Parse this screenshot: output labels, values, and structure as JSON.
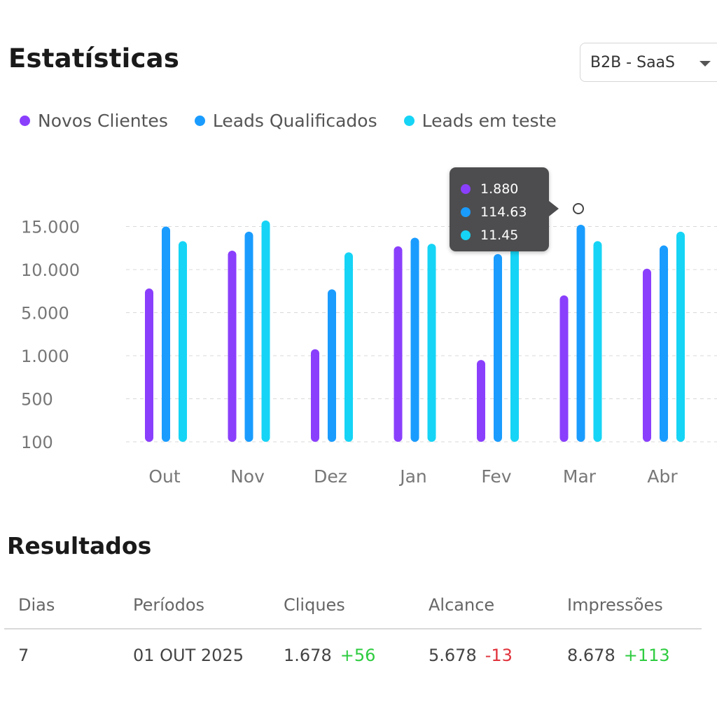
{
  "header": {
    "title": "Estatísticas"
  },
  "filter": {
    "selected": "B2B - SaaS"
  },
  "chart_data": {
    "type": "bar",
    "categories": [
      "Out",
      "Nov",
      "Dez",
      "Jan",
      "Fev",
      "Mar",
      "Abr"
    ],
    "y_tick_labels": [
      "100",
      "500",
      "1.000",
      "5.000",
      "10.000",
      "15.000"
    ],
    "grid": true,
    "legend_position": "top-left",
    "series": [
      {
        "name": "Novos Clientes",
        "color": "#8a3ffc",
        "values": [
          7800,
          12200,
          1600,
          12700,
          950,
          7000,
          10100
        ]
      },
      {
        "name": "Leads Qualificados",
        "color": "#1a9cff",
        "values": [
          15000,
          14400,
          7700,
          13700,
          11800,
          15200,
          12800
        ]
      },
      {
        "name": "Leads em teste",
        "color": "#16d4f5",
        "values": [
          13300,
          15700,
          12000,
          13000,
          14100,
          13300,
          14400
        ]
      }
    ]
  },
  "tooltip": {
    "items": [
      {
        "color": "#8a3ffc",
        "value": "1.880"
      },
      {
        "color": "#1a9cff",
        "value": "114.63"
      },
      {
        "color": "#16d4f5",
        "value": "11.45"
      }
    ]
  },
  "results": {
    "title": "Resultados",
    "columns": [
      "Dias",
      "Períodos",
      "Cliques",
      "Alcance",
      "Impressões"
    ],
    "row": {
      "dias": "7",
      "periodo": "01 OUT 2025",
      "cliques": "1.678",
      "cliques_delta": "+56",
      "alcance": "5.678",
      "alcance_delta": "-13",
      "impressoes": "8.678",
      "impressoes_delta": "+113"
    },
    "positive_color": "#2ecc40",
    "negative_color": "#e0323b"
  }
}
